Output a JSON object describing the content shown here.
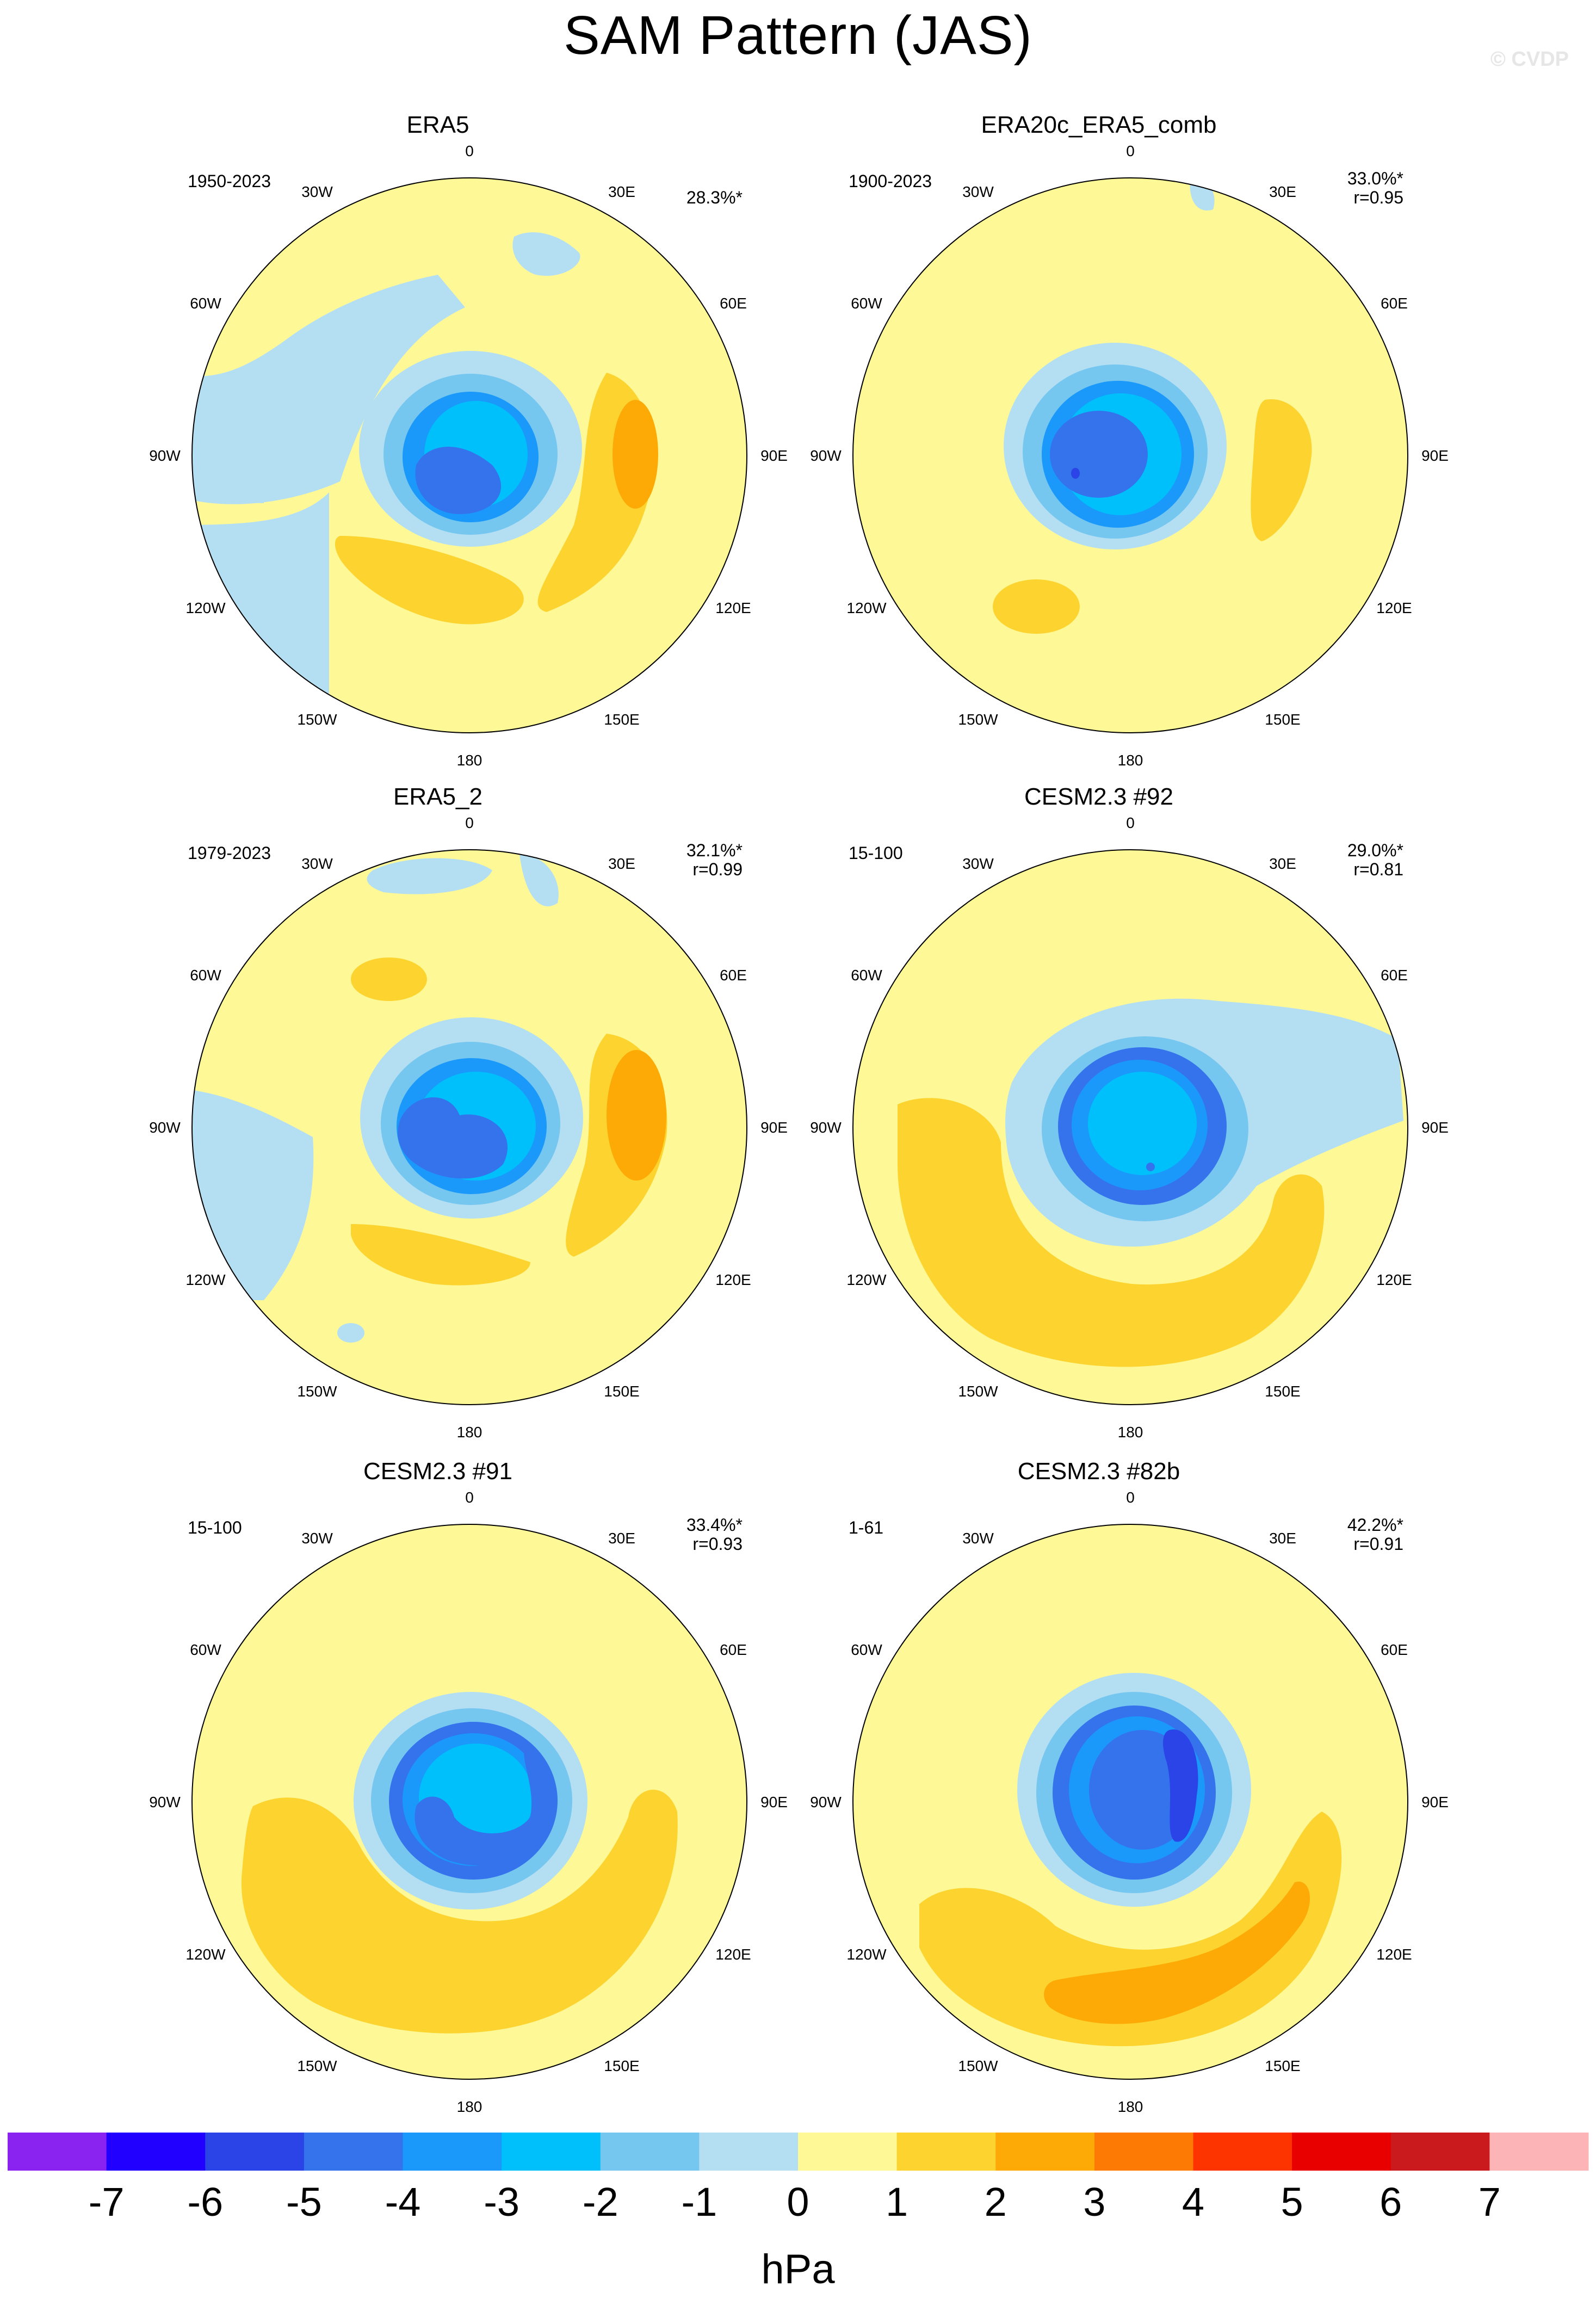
{
  "title": "SAM Pattern (JAS)",
  "watermark": "© CVDP",
  "units": "hPa",
  "lon_labels": [
    "0",
    "30E",
    "60E",
    "90E",
    "120E",
    "150E",
    "180",
    "150W",
    "120W",
    "90W",
    "60W",
    "30W"
  ],
  "colorbar": {
    "colors": [
      "#8a22f0",
      "#2200ff",
      "#2b44e8",
      "#3573ec",
      "#1a99fb",
      "#00c0fb",
      "#76c7f0",
      "#b4dff3",
      "#fef896",
      "#fdd42f",
      "#fdaa07",
      "#fd7a05",
      "#fd3300",
      "#e80000",
      "#cb1a1e",
      "#fdb4b6"
    ],
    "labels": [
      "-7",
      "-6",
      "-5",
      "-4",
      "-3",
      "-2",
      "-1",
      "0",
      "1",
      "2",
      "3",
      "4",
      "5",
      "6",
      "7"
    ]
  },
  "panels": [
    {
      "title": "ERA5",
      "period": "1950-2023",
      "pct": "28.3%*",
      "corr": ""
    },
    {
      "title": "ERA20c_ERA5_comb",
      "period": "1900-2023",
      "pct": "33.0%*",
      "corr": "r=0.95"
    },
    {
      "title": "ERA5_2",
      "period": "1979-2023",
      "pct": "32.1%*",
      "corr": "r=0.99"
    },
    {
      "title": "CESM2.3 #92",
      "period": "15-100",
      "pct": "29.0%*",
      "corr": "r=0.81"
    },
    {
      "title": "CESM2.3 #91",
      "period": "15-100",
      "pct": "33.4%*",
      "corr": "r=0.93"
    },
    {
      "title": "CESM2.3 #82b",
      "period": "1-61",
      "pct": "42.2%*",
      "corr": "r=0.91"
    }
  ]
}
